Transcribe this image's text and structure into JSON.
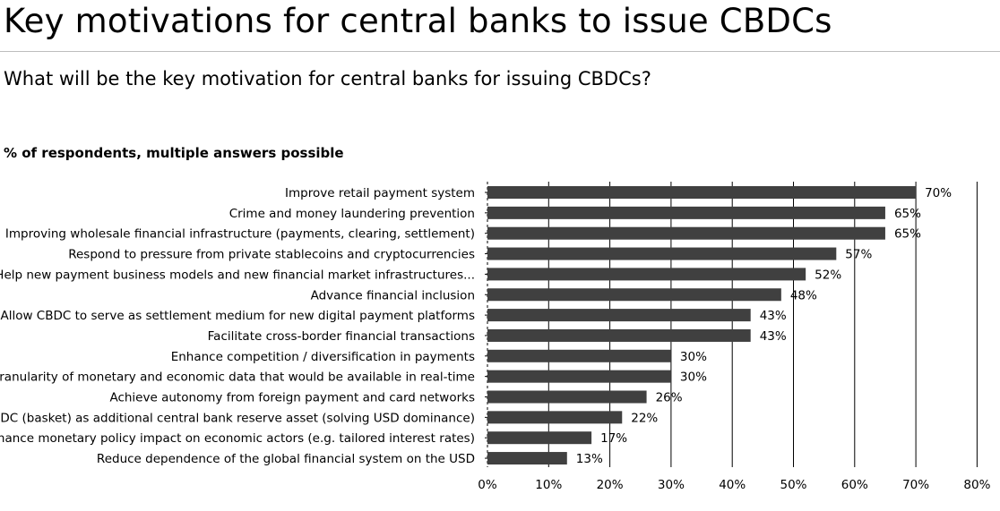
{
  "title": "Key motivations for central banks to issue CBDCs",
  "subtitle": "What will be the key motivation for central banks for issuing CBDCs?",
  "note": "% of respondents, multiple answers possible",
  "colors": {
    "bar": "#404040",
    "axis": "#000000",
    "grid": "#000000",
    "text": "#000000"
  },
  "chart_data": {
    "type": "bar",
    "orientation": "horizontal",
    "categories": [
      "Improve retail payment system",
      "Crime and money laundering prevention",
      "Improving wholesale financial infrastructure (payments, clearing, settlement)",
      "Respond to pressure from private stablecoins and cryptocurrencies",
      "Help new payment business models and new financial market infrastructures...",
      "Advance financial inclusion",
      "Allow CBDC to serve as settlement medium for new digital payment platforms",
      "Facilitate cross-border financial transactions",
      "Enhance competition / diversification in payments",
      "Granularity of monetary and economic data that would be available in real-time",
      "Achieve autonomy from foreign payment and card networks",
      "CBDC (basket) as additional central bank reserve asset (solving USD dominance)",
      "Enhance monetary policy impact on economic actors (e.g. tailored interest rates)",
      "Reduce dependence of the global financial system on the USD"
    ],
    "values": [
      70,
      65,
      65,
      57,
      52,
      48,
      43,
      43,
      30,
      30,
      26,
      22,
      17,
      13
    ],
    "data_labels": [
      "70%",
      "65%",
      "65%",
      "57%",
      "52%",
      "48%",
      "43%",
      "43%",
      "30%",
      "30%",
      "26%",
      "22%",
      "17%",
      "13%"
    ],
    "xlim": [
      0,
      80
    ],
    "xticks": [
      0,
      10,
      20,
      30,
      40,
      50,
      60,
      70,
      80
    ],
    "xtick_labels": [
      "0%",
      "10%",
      "20%",
      "30%",
      "40%",
      "50%",
      "60%",
      "70%",
      "80%"
    ],
    "grid": true
  }
}
